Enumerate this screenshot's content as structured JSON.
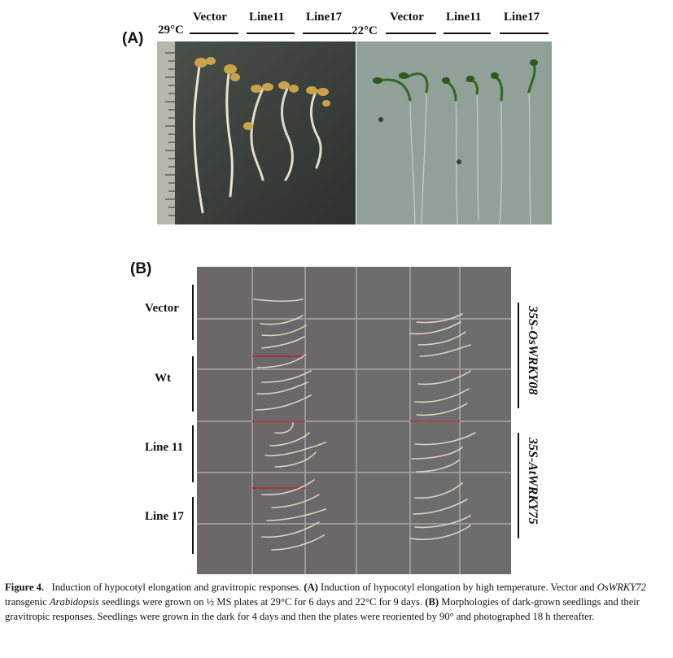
{
  "panel_a": {
    "label": "(A)",
    "temps": [
      "29°C",
      "22°C"
    ],
    "columns_left": [
      "Vector",
      "Line11",
      "Line17"
    ],
    "columns_right": [
      "Vector",
      "Line11",
      "Line17"
    ]
  },
  "panel_b": {
    "label": "(B)",
    "rows": [
      "Vector",
      "Wt",
      "Line 11",
      "Line 17"
    ],
    "side_labels": [
      "35S-OsWRKY08",
      "35S-AtWRKY75"
    ]
  },
  "caption": {
    "fig": "Figure 4.",
    "t1": "Induction of hypocotyl elongation and gravitropic responses.",
    "a_label": "(A)",
    "t2": "Induction of hypocotyl elongation by high temperature. Vector and",
    "gene": "OsWRKY72",
    "t3": "transgenic",
    "species": "Arabidopsis",
    "t4": "seedlings were grown on ½ MS plates at 29°C for 6 days and 22°C for 9 days.",
    "b_label": "(B)",
    "t5": "Morphologies of dark-grown seedlings and their gravitropic responses. Seedlings were grown in the dark for 4 days and then the plates were reoriented by 90° and photographed 18 h thereafter."
  },
  "colors": {
    "left_photo_bg": "#3d4340",
    "right_photo_bg": "#8c9d96",
    "plate_bg": "#6a6869",
    "grid_line": "#9b9898",
    "seedling_green": "#2f6a20",
    "seedling_pale": "#d9d3c0",
    "red_mark": "#b0282a"
  }
}
